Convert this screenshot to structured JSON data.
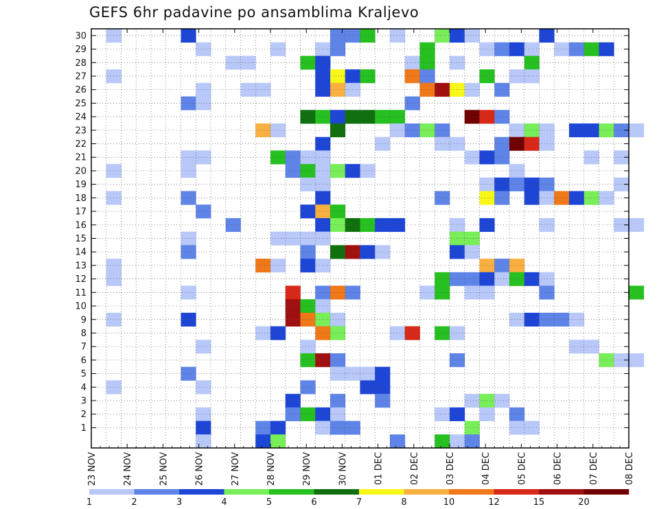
{
  "chart_data": {
    "type": "heatmap",
    "title": "GEFS 6hr padavine po ansamblima Kraljevo",
    "x_tick_labels": [
      "23 NOV",
      "24 NOV",
      "25 NOV",
      "26 NOV",
      "27 NOV",
      "28 NOV",
      "29 NOV",
      "30 NOV",
      "01 DEC",
      "02 DEC",
      "03 DEC",
      "04 DEC",
      "05 DEC",
      "06 DEC",
      "07 DEC",
      "08 DEC"
    ],
    "y_tick_labels": [
      "1",
      "2",
      "3",
      "4",
      "5",
      "6",
      "7",
      "8",
      "9",
      "10",
      "11",
      "12",
      "13",
      "14",
      "15",
      "16",
      "17",
      "18",
      "19",
      "20",
      "21",
      "22",
      "23",
      "24",
      "25",
      "26",
      "27",
      "28",
      "29",
      "30"
    ],
    "grid": true,
    "colorbar": {
      "levels": [
        "1",
        "2",
        "3",
        "4",
        "5",
        "6",
        "7",
        "8",
        "10",
        "12",
        "15",
        "20"
      ],
      "colors": [
        "#b8c8f8",
        "#5f84e8",
        "#1e46d6",
        "#78ee58",
        "#26c020",
        "#107010",
        "#f8f818",
        "#f8b040",
        "#f07818",
        "#d82818",
        "#a01010",
        "#700000"
      ]
    },
    "cells": [
      [
        1,
        30,
        1
      ],
      [
        6,
        30,
        3
      ],
      [
        16,
        30,
        2
      ],
      [
        17,
        30,
        2
      ],
      [
        18,
        30,
        5
      ],
      [
        20,
        30,
        1
      ],
      [
        23,
        30,
        4
      ],
      [
        24,
        30,
        3
      ],
      [
        25,
        30,
        1
      ],
      [
        30,
        30,
        3
      ],
      [
        7,
        29,
        1
      ],
      [
        12,
        29,
        1
      ],
      [
        15,
        29,
        1
      ],
      [
        16,
        29,
        2
      ],
      [
        22,
        29,
        5
      ],
      [
        26,
        29,
        1
      ],
      [
        27,
        29,
        2
      ],
      [
        28,
        29,
        3
      ],
      [
        29,
        29,
        1
      ],
      [
        31,
        29,
        1
      ],
      [
        32,
        29,
        2
      ],
      [
        33,
        29,
        5
      ],
      [
        34,
        29,
        3
      ],
      [
        9,
        28,
        1
      ],
      [
        10,
        28,
        1
      ],
      [
        14,
        28,
        5
      ],
      [
        15,
        28,
        3
      ],
      [
        21,
        28,
        1
      ],
      [
        22,
        28,
        5
      ],
      [
        24,
        28,
        1
      ],
      [
        29,
        28,
        5
      ],
      [
        1,
        27,
        1
      ],
      [
        15,
        27,
        3
      ],
      [
        16,
        27,
        7
      ],
      [
        17,
        27,
        3
      ],
      [
        18,
        27,
        5
      ],
      [
        21,
        27,
        9
      ],
      [
        22,
        27,
        2
      ],
      [
        26,
        27,
        5
      ],
      [
        28,
        27,
        1
      ],
      [
        29,
        27,
        1
      ],
      [
        7,
        26,
        1
      ],
      [
        10,
        26,
        1
      ],
      [
        11,
        26,
        1
      ],
      [
        15,
        26,
        3
      ],
      [
        16,
        26,
        8
      ],
      [
        17,
        26,
        1
      ],
      [
        22,
        26,
        9
      ],
      [
        23,
        26,
        11
      ],
      [
        24,
        26,
        7
      ],
      [
        25,
        26,
        1
      ],
      [
        27,
        26,
        2
      ],
      [
        6,
        25,
        2
      ],
      [
        7,
        25,
        1
      ],
      [
        21,
        25,
        2
      ],
      [
        14,
        24,
        6
      ],
      [
        15,
        24,
        5
      ],
      [
        16,
        24,
        3
      ],
      [
        17,
        24,
        6
      ],
      [
        18,
        24,
        6
      ],
      [
        19,
        24,
        5
      ],
      [
        20,
        24,
        5
      ],
      [
        25,
        24,
        12
      ],
      [
        26,
        24,
        10
      ],
      [
        27,
        24,
        2
      ],
      [
        11,
        23,
        8
      ],
      [
        12,
        23,
        1
      ],
      [
        16,
        23,
        6
      ],
      [
        20,
        23,
        1
      ],
      [
        21,
        23,
        2
      ],
      [
        22,
        23,
        4
      ],
      [
        23,
        23,
        2
      ],
      [
        28,
        23,
        1
      ],
      [
        29,
        23,
        4
      ],
      [
        30,
        23,
        1
      ],
      [
        32,
        23,
        3
      ],
      [
        33,
        23,
        3
      ],
      [
        34,
        23,
        4
      ],
      [
        35,
        23,
        2
      ],
      [
        36,
        23,
        1
      ],
      [
        15,
        22,
        3
      ],
      [
        19,
        22,
        1
      ],
      [
        23,
        22,
        1
      ],
      [
        24,
        22,
        1
      ],
      [
        27,
        22,
        2
      ],
      [
        28,
        22,
        12
      ],
      [
        29,
        22,
        10
      ],
      [
        30,
        22,
        1
      ],
      [
        6,
        21,
        1
      ],
      [
        7,
        21,
        1
      ],
      [
        12,
        21,
        5
      ],
      [
        13,
        21,
        2
      ],
      [
        14,
        21,
        1
      ],
      [
        15,
        21,
        1
      ],
      [
        25,
        21,
        1
      ],
      [
        26,
        21,
        3
      ],
      [
        27,
        21,
        2
      ],
      [
        33,
        21,
        1
      ],
      [
        35,
        21,
        1
      ],
      [
        1,
        20,
        1
      ],
      [
        6,
        20,
        1
      ],
      [
        13,
        20,
        2
      ],
      [
        14,
        20,
        5
      ],
      [
        15,
        20,
        1
      ],
      [
        16,
        20,
        4
      ],
      [
        17,
        20,
        3
      ],
      [
        18,
        20,
        1
      ],
      [
        28,
        20,
        1
      ],
      [
        14,
        19,
        1
      ],
      [
        15,
        19,
        1
      ],
      [
        26,
        19,
        1
      ],
      [
        27,
        19,
        3
      ],
      [
        28,
        19,
        2
      ],
      [
        29,
        19,
        3
      ],
      [
        30,
        19,
        2
      ],
      [
        35,
        19,
        1
      ],
      [
        1,
        18,
        1
      ],
      [
        6,
        18,
        2
      ],
      [
        15,
        18,
        3
      ],
      [
        23,
        18,
        2
      ],
      [
        26,
        18,
        7
      ],
      [
        27,
        18,
        2
      ],
      [
        29,
        18,
        3
      ],
      [
        30,
        18,
        1
      ],
      [
        31,
        18,
        9
      ],
      [
        32,
        18,
        3
      ],
      [
        33,
        18,
        4
      ],
      [
        34,
        18,
        1
      ],
      [
        7,
        17,
        2
      ],
      [
        14,
        17,
        3
      ],
      [
        15,
        17,
        8
      ],
      [
        16,
        17,
        5
      ],
      [
        9,
        16,
        2
      ],
      [
        15,
        16,
        3
      ],
      [
        16,
        16,
        4
      ],
      [
        17,
        16,
        6
      ],
      [
        18,
        16,
        5
      ],
      [
        19,
        16,
        3
      ],
      [
        20,
        16,
        3
      ],
      [
        24,
        16,
        1
      ],
      [
        26,
        16,
        3
      ],
      [
        30,
        16,
        1
      ],
      [
        35,
        16,
        1
      ],
      [
        36,
        16,
        1
      ],
      [
        6,
        15,
        1
      ],
      [
        12,
        15,
        1
      ],
      [
        13,
        15,
        1
      ],
      [
        14,
        15,
        1
      ],
      [
        15,
        15,
        1
      ],
      [
        24,
        15,
        4
      ],
      [
        25,
        15,
        4
      ],
      [
        6,
        14,
        2
      ],
      [
        14,
        14,
        2
      ],
      [
        16,
        14,
        6
      ],
      [
        17,
        14,
        11
      ],
      [
        18,
        14,
        3
      ],
      [
        19,
        14,
        1
      ],
      [
        24,
        14,
        3
      ],
      [
        25,
        14,
        1
      ],
      [
        1,
        13,
        1
      ],
      [
        11,
        13,
        9
      ],
      [
        12,
        13,
        1
      ],
      [
        14,
        13,
        3
      ],
      [
        15,
        13,
        1
      ],
      [
        26,
        13,
        8
      ],
      [
        27,
        13,
        2
      ],
      [
        28,
        13,
        8
      ],
      [
        1,
        12,
        1
      ],
      [
        23,
        12,
        5
      ],
      [
        24,
        12,
        2
      ],
      [
        25,
        12,
        2
      ],
      [
        26,
        12,
        3
      ],
      [
        27,
        12,
        1
      ],
      [
        28,
        12,
        5
      ],
      [
        29,
        12,
        3
      ],
      [
        30,
        12,
        1
      ],
      [
        6,
        11,
        1
      ],
      [
        13,
        11,
        10
      ],
      [
        15,
        11,
        2
      ],
      [
        16,
        11,
        9
      ],
      [
        17,
        11,
        2
      ],
      [
        22,
        11,
        1
      ],
      [
        23,
        11,
        5
      ],
      [
        25,
        11,
        1
      ],
      [
        26,
        11,
        1
      ],
      [
        30,
        11,
        2
      ],
      [
        36,
        11,
        5
      ],
      [
        13,
        10,
        11
      ],
      [
        14,
        10,
        5
      ],
      [
        15,
        10,
        1
      ],
      [
        1,
        9,
        1
      ],
      [
        6,
        9,
        3
      ],
      [
        13,
        9,
        11
      ],
      [
        14,
        9,
        9
      ],
      [
        15,
        9,
        4
      ],
      [
        16,
        9,
        1
      ],
      [
        28,
        9,
        1
      ],
      [
        29,
        9,
        3
      ],
      [
        30,
        9,
        2
      ],
      [
        31,
        9,
        2
      ],
      [
        32,
        9,
        1
      ],
      [
        11,
        8,
        1
      ],
      [
        12,
        8,
        3
      ],
      [
        15,
        8,
        9
      ],
      [
        16,
        8,
        4
      ],
      [
        20,
        8,
        1
      ],
      [
        21,
        8,
        10
      ],
      [
        23,
        8,
        5
      ],
      [
        24,
        8,
        1
      ],
      [
        7,
        7,
        1
      ],
      [
        14,
        7,
        1
      ],
      [
        32,
        7,
        1
      ],
      [
        33,
        7,
        1
      ],
      [
        14,
        6,
        5
      ],
      [
        15,
        6,
        11
      ],
      [
        16,
        6,
        2
      ],
      [
        24,
        6,
        2
      ],
      [
        34,
        6,
        4
      ],
      [
        35,
        6,
        1
      ],
      [
        36,
        6,
        1
      ],
      [
        6,
        5,
        2
      ],
      [
        16,
        5,
        1
      ],
      [
        17,
        5,
        1
      ],
      [
        18,
        5,
        1
      ],
      [
        19,
        5,
        3
      ],
      [
        1,
        4,
        1
      ],
      [
        7,
        4,
        1
      ],
      [
        14,
        4,
        2
      ],
      [
        18,
        4,
        3
      ],
      [
        19,
        4,
        3
      ],
      [
        13,
        3,
        3
      ],
      [
        16,
        3,
        2
      ],
      [
        19,
        3,
        2
      ],
      [
        25,
        3,
        1
      ],
      [
        26,
        3,
        4
      ],
      [
        27,
        3,
        1
      ],
      [
        7,
        2,
        1
      ],
      [
        13,
        2,
        2
      ],
      [
        14,
        2,
        5
      ],
      [
        15,
        2,
        3
      ],
      [
        16,
        2,
        1
      ],
      [
        23,
        2,
        1
      ],
      [
        24,
        2,
        3
      ],
      [
        26,
        2,
        1
      ],
      [
        28,
        2,
        2
      ],
      [
        7,
        1,
        3
      ],
      [
        11,
        1,
        2
      ],
      [
        12,
        1,
        3
      ],
      [
        15,
        1,
        1
      ],
      [
        16,
        1,
        2
      ],
      [
        17,
        1,
        2
      ],
      [
        25,
        1,
        4
      ],
      [
        28,
        1,
        1
      ],
      [
        29,
        1,
        1
      ],
      [
        7,
        0,
        1
      ],
      [
        11,
        0,
        3
      ],
      [
        12,
        0,
        4
      ],
      [
        20,
        0,
        2
      ],
      [
        23,
        0,
        5
      ],
      [
        24,
        0,
        1
      ],
      [
        25,
        0,
        2
      ]
    ]
  }
}
